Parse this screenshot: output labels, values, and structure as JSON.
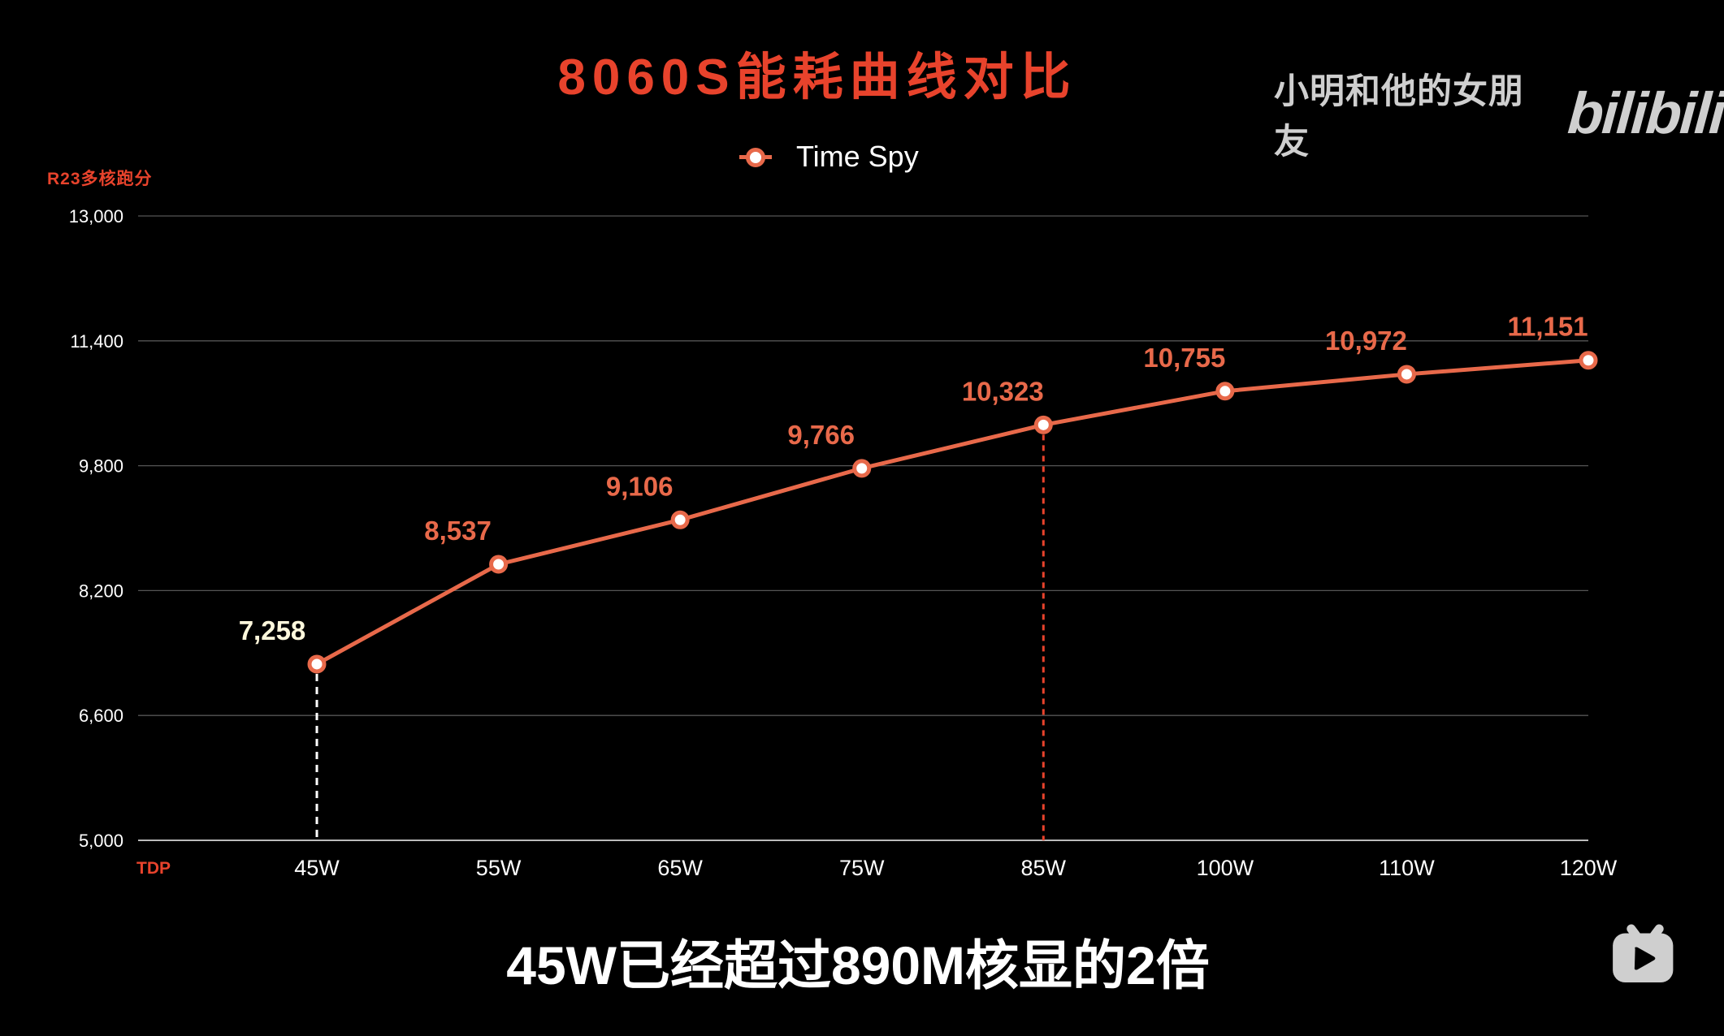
{
  "header": {
    "title": "8060S能耗曲线对比"
  },
  "watermark": {
    "uploader": "小明和他的女朋友",
    "logo_text": "bilibili",
    "logo_icon": "bilibili-tv-icon"
  },
  "legend": {
    "series_label": "Time Spy",
    "marker_icon": "line-circle-marker-icon"
  },
  "axes": {
    "y_title": "R23多核跑分",
    "x_title": "TDP"
  },
  "subtitle": "45W已经超过890M核显的2倍",
  "colors": {
    "title": "#E8432C",
    "line": "#E8694A",
    "marker_fill": "#FFFFFF",
    "highlight_label": "#FFF8DC",
    "grid": "#555555",
    "axis": "#BBBBBB",
    "dash_highlight": "#FFFFFF",
    "dash_reference": "#E8432C",
    "watermark": "#CFCFCF"
  },
  "chart_data": {
    "type": "line",
    "title": "8060S能耗曲线对比",
    "xlabel": "TDP",
    "ylabel": "R23多核跑分",
    "categories": [
      "45W",
      "55W",
      "65W",
      "75W",
      "85W",
      "100W",
      "110W",
      "120W"
    ],
    "series": [
      {
        "name": "Time Spy",
        "values": [
          7258,
          8537,
          9106,
          9766,
          10323,
          10755,
          10972,
          11151
        ],
        "labels": [
          "7,258",
          "8,537",
          "9,106",
          "9,766",
          "10,323",
          "10,755",
          "10,972",
          "11,151"
        ]
      }
    ],
    "ylim": [
      5000,
      13000
    ],
    "yticks": [
      5000,
      6600,
      8200,
      9800,
      11400,
      13000
    ],
    "ytick_labels": [
      "5,000",
      "6,600",
      "8,200",
      "9,800",
      "11,400",
      "13,000"
    ],
    "grid": true,
    "legend_position": "top-center",
    "annotations": [
      {
        "type": "dashed-vline",
        "x": "45W",
        "color": "white",
        "label_highlight": "7,258"
      },
      {
        "type": "dashed-vline",
        "x": "85W",
        "color": "red"
      }
    ]
  }
}
